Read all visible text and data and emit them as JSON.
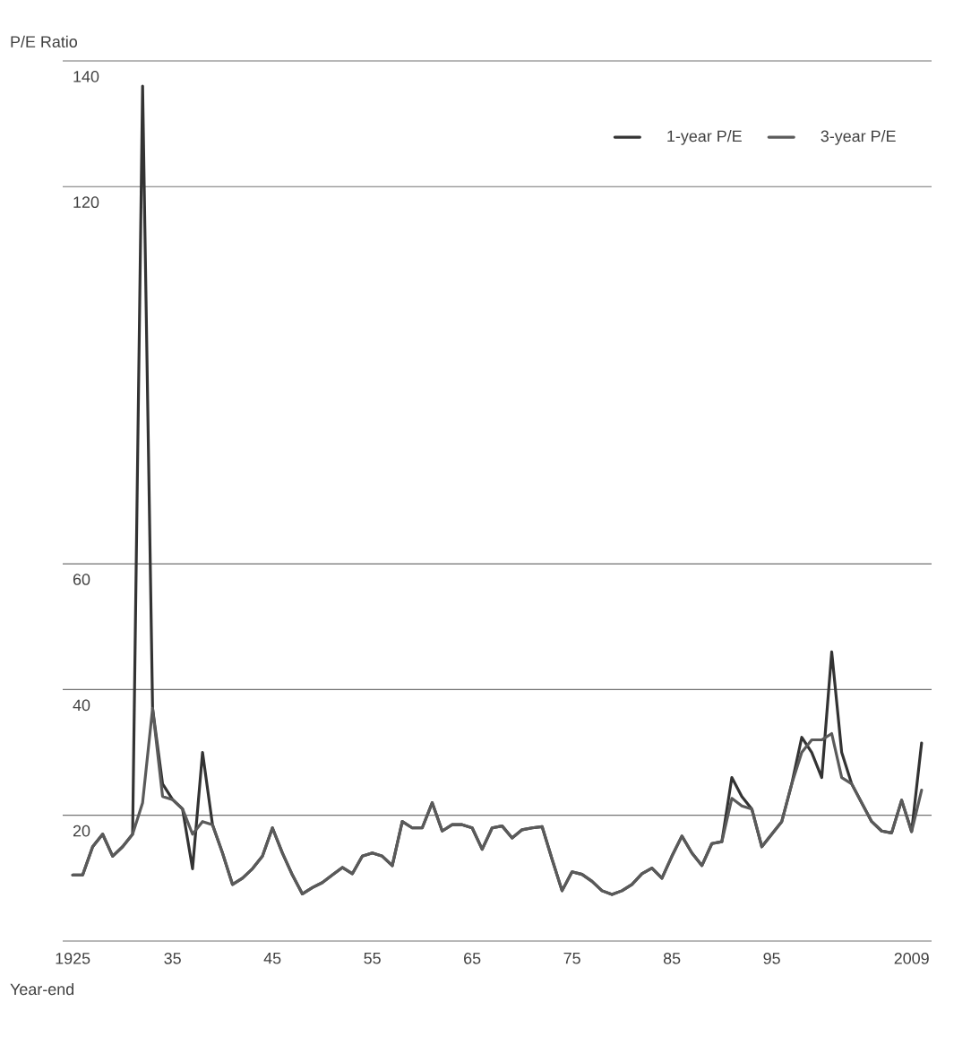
{
  "chart_data": {
    "type": "line",
    "ylabel": "P/E Ratio",
    "xlabel": "Year-end",
    "legend": "top right",
    "grid": "y",
    "line_style": "solid",
    "x": [
      1925,
      1926,
      1927,
      1928,
      1929,
      1930,
      1931,
      1932,
      1933,
      1934,
      1935,
      1936,
      1937,
      1938,
      1939,
      1940,
      1941,
      1942,
      1943,
      1944,
      1945,
      1946,
      1947,
      1948,
      1949,
      1950,
      1951,
      1952,
      1953,
      1954,
      1955,
      1956,
      1957,
      1958,
      1959,
      1960,
      1961,
      1962,
      1963,
      1964,
      1965,
      1966,
      1967,
      1968,
      1969,
      1970,
      1971,
      1972,
      1973,
      1974,
      1975,
      1976,
      1977,
      1978,
      1979,
      1980,
      1981,
      1982,
      1983,
      1984,
      1985,
      1986,
      1987,
      1988,
      1989,
      1990,
      1991,
      1992,
      1993,
      1994,
      1995,
      1996,
      1997,
      1998,
      1999,
      2000,
      2001,
      2002,
      2003,
      2004,
      2005,
      2006,
      2007,
      2008,
      2009,
      2010
    ],
    "xlim": [
      1924,
      2011
    ],
    "ylim": [
      0,
      140
    ],
    "xticks": [
      1925,
      {
        "value": 1935,
        "label": "35"
      },
      {
        "value": 1945,
        "label": "45"
      },
      {
        "value": 1955,
        "label": "55"
      },
      {
        "value": 1965,
        "label": "65"
      },
      {
        "value": 1975,
        "label": "75"
      },
      {
        "value": 1985,
        "label": "85"
      },
      {
        "value": 1995,
        "label": "95"
      },
      2009
    ],
    "yticks": [
      {
        "value": 0,
        "label": null
      },
      20,
      40,
      60,
      120,
      140
    ],
    "series": [
      {
        "name": "1-year P/E",
        "color": "#333333",
        "values": [
          10.5,
          10.5,
          15,
          17,
          13.5,
          15,
          17,
          136,
          37,
          25,
          22.5,
          21,
          11.5,
          30,
          18.5,
          14,
          9,
          10,
          11.5,
          13.5,
          18,
          14,
          10.5,
          7.5,
          8.5,
          9.3,
          10.5,
          11.7,
          10.7,
          13.5,
          14,
          13.5,
          12,
          19,
          18,
          18,
          22,
          17.5,
          18.5,
          18.5,
          18,
          14.6,
          18,
          18.3,
          16.4,
          17.7,
          18,
          18.2,
          13,
          8,
          11,
          10.6,
          9.5,
          8,
          7.4,
          8,
          9,
          10.7,
          11.6,
          10,
          13.5,
          16.7,
          14,
          12,
          15.5,
          15.8,
          26,
          23,
          21,
          15,
          17,
          19,
          25,
          32.4,
          30,
          26,
          46,
          30,
          25,
          22,
          19,
          17.5,
          17.2,
          22.4,
          17.4,
          31.5
        ]
      },
      {
        "name": "3-year P/E",
        "color": "#5a5a5a",
        "values": [
          10.5,
          10.5,
          15,
          17,
          13.5,
          15,
          17,
          22,
          37,
          23,
          22.5,
          21,
          17,
          19,
          18.5,
          14,
          9,
          10,
          11.5,
          13.5,
          18,
          14,
          10.5,
          7.5,
          8.5,
          9.3,
          10.5,
          11.7,
          10.7,
          13.5,
          14,
          13.5,
          12,
          19,
          18,
          18,
          22,
          17.5,
          18.5,
          18.5,
          18,
          14.6,
          18,
          18.3,
          16.4,
          17.7,
          18,
          18.2,
          13,
          8,
          11,
          10.6,
          9.5,
          8,
          7.4,
          8,
          9,
          10.7,
          11.6,
          10,
          13.5,
          16.7,
          14,
          12,
          15.5,
          15.8,
          22.7,
          21.5,
          21,
          15,
          17,
          19,
          25,
          30,
          32,
          32,
          33,
          26,
          25,
          22,
          19,
          17.5,
          17.2,
          22.4,
          17.4,
          24
        ]
      }
    ]
  }
}
